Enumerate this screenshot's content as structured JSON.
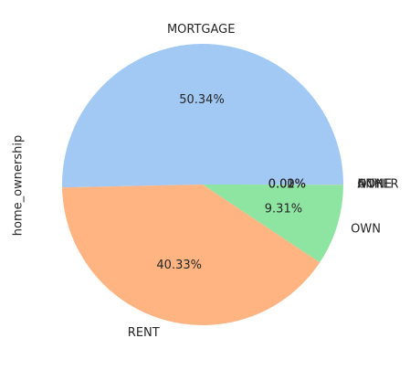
{
  "chart_data": {
    "type": "pie",
    "ylabel": "home_ownership",
    "slices": [
      {
        "label": "MORTGAGE",
        "value": 50.34,
        "pct_label": "50.34%",
        "color": "#a1c9f4"
      },
      {
        "label": "RENT",
        "value": 40.33,
        "pct_label": "40.33%",
        "color": "#ffb482"
      },
      {
        "label": "OWN",
        "value": 9.31,
        "pct_label": "9.31%",
        "color": "#8de5a1"
      },
      {
        "label": "OTHER",
        "value": 0.02,
        "pct_label": "0.02%",
        "color": "#ff9f9b"
      },
      {
        "label": "NONE",
        "value": 0.01,
        "pct_label": "0.01%",
        "color": "#d0bbff"
      },
      {
        "label": "ANY",
        "value": 0.0,
        "pct_label": "0.00%",
        "color": "#debb9b"
      }
    ]
  }
}
